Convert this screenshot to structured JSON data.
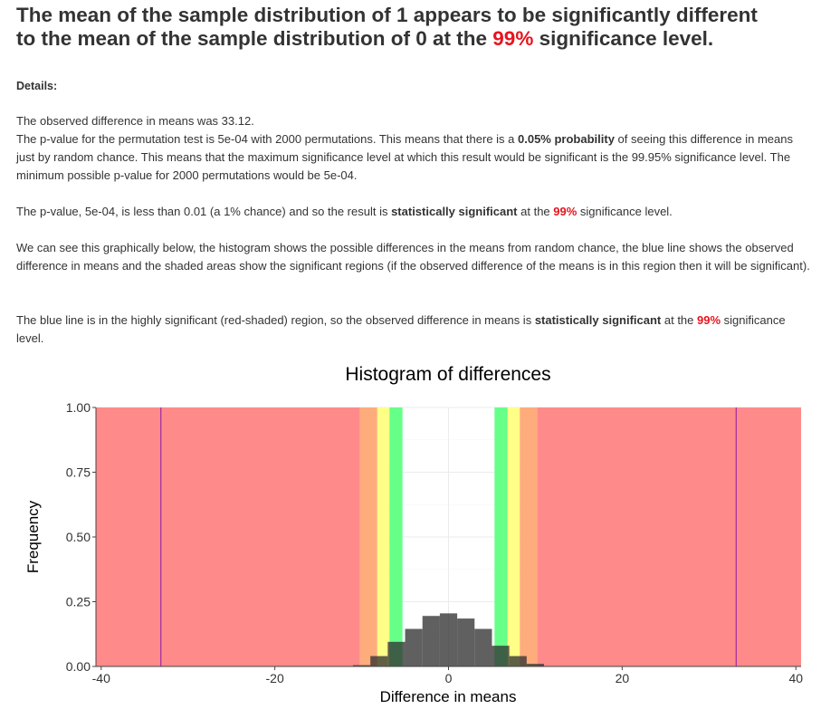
{
  "headline": {
    "part1": "The mean of the sample distribution of 1 appears to be ",
    "bold_phrase": "significantly different",
    "part2": "to the mean of the sample distribution of 0 at the ",
    "level": "99%",
    "part3": " significance level."
  },
  "details_label": "Details:",
  "observed_text": "The observed difference in means was 33.12.",
  "pvalue_para": {
    "part1": "The p-value for the permutation test is 5e-04 with 2000 permutations. This means that there is a ",
    "prob": "0.05% probability",
    "part2": " of seeing this difference in means just by random chance. This means that the maximum significance level at which this result would be significant is the 99.95% significance level. The minimum possible p-value for 2000 permutations would be 5e-04."
  },
  "conclusion_para": {
    "part1": "The p-value, 5e-04, is less than 0.01 (a 1% chance) and so the result is ",
    "bold": "statistically significant",
    "part2": " at the ",
    "level": "99%",
    "part3": " significance level."
  },
  "graph_para": "We can see this graphically below, the histogram shows the possible differences in the means from random chance, the blue line shows the observed difference in means and the shaded areas show the significant regions (if the observed difference of the means is in this region then it will be significant).",
  "blue_para": {
    "part1": "The blue line is in the highly significant (red-shaded) region, so the observed difference in means is ",
    "bold": "statistically significant",
    "part2": " at the ",
    "level": "99%",
    "part3": " significance level."
  },
  "chart_data": {
    "type": "bar",
    "title": "Histogram of differences",
    "xlabel": "Difference in means",
    "ylabel": "Frequency",
    "xlim": [
      -40.6,
      40.6
    ],
    "ylim": [
      0,
      1.0
    ],
    "xticks": [
      -40,
      -20,
      0,
      20,
      40
    ],
    "yticks": [
      0.0,
      0.25,
      0.5,
      0.75,
      1.0
    ],
    "ytick_labels": [
      "0.00",
      "0.25",
      "0.50",
      "0.75",
      "1.00"
    ],
    "grid": true,
    "bin_width": 2,
    "bins_x": [
      -10,
      -8,
      -6,
      -4,
      -2,
      0,
      2,
      4,
      6,
      8,
      10
    ],
    "bins_y": [
      0.005,
      0.04,
      0.095,
      0.145,
      0.195,
      0.205,
      0.185,
      0.145,
      0.08,
      0.04,
      0.01
    ],
    "regions": [
      {
        "level": "99%",
        "from": -40.6,
        "to": -10.2,
        "color": "#ff8a8a"
      },
      {
        "level": "99%",
        "from": 10.2,
        "to": 40.6,
        "color": "#ff8a8a"
      },
      {
        "level": "98%",
        "from": -10.2,
        "to": -8.2,
        "color": "#ffac7c"
      },
      {
        "level": "98%",
        "from": 8.2,
        "to": 10.2,
        "color": "#ffac7c"
      },
      {
        "level": "95%",
        "from": -8.2,
        "to": -6.8,
        "color": "#ffff88"
      },
      {
        "level": "95%",
        "from": 6.8,
        "to": 8.2,
        "color": "#ffff88"
      },
      {
        "level": "90%",
        "from": -6.8,
        "to": -5.3,
        "color": "#66ff88"
      },
      {
        "level": "90%",
        "from": 5.3,
        "to": 6.8,
        "color": "#66ff88"
      }
    ],
    "observed_lines": [
      -33.12,
      33.12
    ],
    "observed_line_color": "#8a1aa8"
  }
}
